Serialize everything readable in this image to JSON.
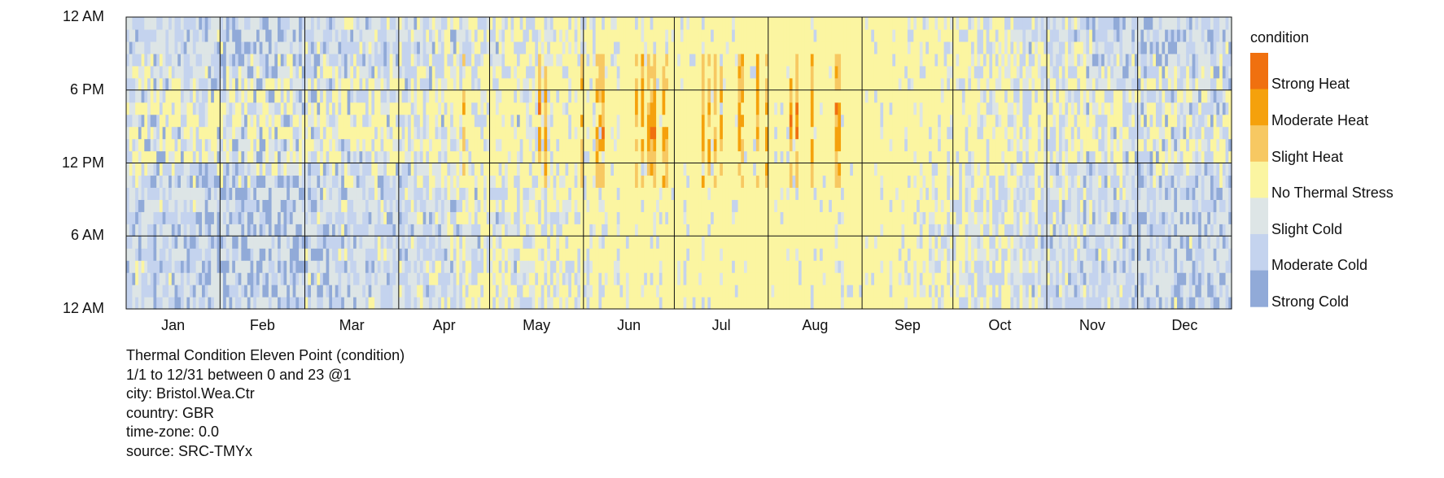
{
  "chart_data": {
    "type": "heatmap",
    "x_ticks": [
      "Jan",
      "Feb",
      "Mar",
      "Apr",
      "May",
      "Jun",
      "Jul",
      "Aug",
      "Sep",
      "Oct",
      "Nov",
      "Dec"
    ],
    "y_ticks": [
      "12 AM",
      "6 PM",
      "12 PM",
      "6 AM",
      "12 AM"
    ],
    "x_range": [
      "1/1",
      "12/31"
    ],
    "y_range_hours": [
      0,
      24
    ],
    "grid": true,
    "legend": {
      "title": "condition",
      "position": "right",
      "items": [
        {
          "label": "Strong Heat",
          "color": "#f0700f"
        },
        {
          "label": "Moderate Heat",
          "color": "#f5a10c"
        },
        {
          "label": "Slight Heat",
          "color": "#f7c862"
        },
        {
          "label": "No Thermal Stress",
          "color": "#fbf5a1"
        },
        {
          "label": "Slight Cold",
          "color": "#dde5e6"
        },
        {
          "label": "Moderate Cold",
          "color": "#c4d3ee"
        },
        {
          "label": "Strong Cold",
          "color": "#91aad8"
        }
      ]
    },
    "monthly_mix": [
      {
        "month": "Jan",
        "cold_share": 0.9,
        "strong_cold_share": 0.06,
        "heat_share": 0.0
      },
      {
        "month": "Feb",
        "cold_share": 0.92,
        "strong_cold_share": 0.2,
        "heat_share": 0.0
      },
      {
        "month": "Mar",
        "cold_share": 0.85,
        "strong_cold_share": 0.06,
        "heat_share": 0.0
      },
      {
        "month": "Apr",
        "cold_share": 0.65,
        "strong_cold_share": 0.03,
        "heat_share": 0.0
      },
      {
        "month": "May",
        "cold_share": 0.4,
        "strong_cold_share": 0.0,
        "heat_share": 0.02
      },
      {
        "month": "Jun",
        "cold_share": 0.12,
        "strong_cold_share": 0.0,
        "heat_share": 0.1
      },
      {
        "month": "Jul",
        "cold_share": 0.05,
        "strong_cold_share": 0.0,
        "heat_share": 0.08
      },
      {
        "month": "Aug",
        "cold_share": 0.03,
        "strong_cold_share": 0.0,
        "heat_share": 0.08
      },
      {
        "month": "Sep",
        "cold_share": 0.18,
        "strong_cold_share": 0.0,
        "heat_share": 0.02
      },
      {
        "month": "Oct",
        "cold_share": 0.6,
        "strong_cold_share": 0.0,
        "heat_share": 0.0
      },
      {
        "month": "Nov",
        "cold_share": 0.85,
        "strong_cold_share": 0.05,
        "heat_share": 0.0
      },
      {
        "month": "Dec",
        "cold_share": 0.92,
        "strong_cold_share": 0.12,
        "heat_share": 0.0
      }
    ]
  },
  "info": {
    "line1": "Thermal Condition Eleven Point (condition)",
    "line2": "1/1 to 12/31 between 0 and 23 @1",
    "line3": "city: Bristol.Wea.Ctr",
    "line4": "country: GBR",
    "line5": "time-zone: 0.0",
    "line6": "source: SRC-TMYx"
  }
}
